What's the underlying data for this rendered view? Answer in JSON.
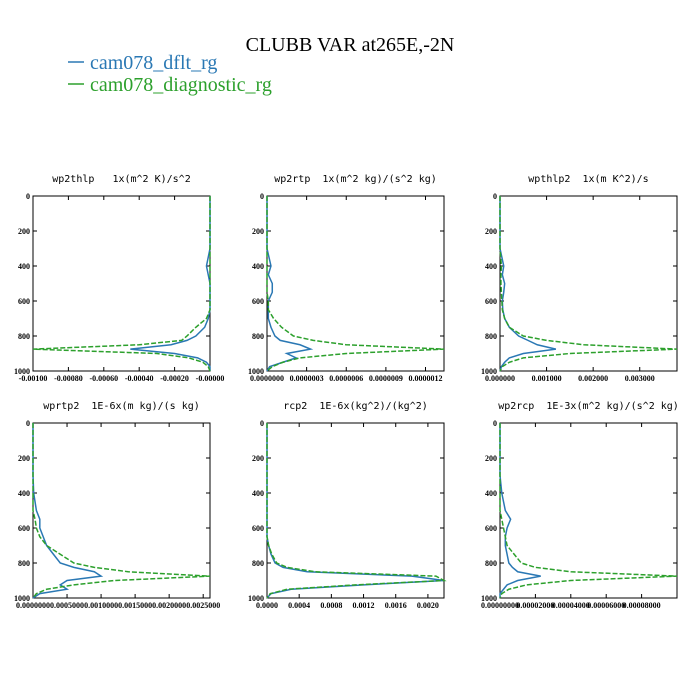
{
  "title": "CLUBB VAR at265E,-2N",
  "legend": [
    {
      "name": "cam078_dflt_rg",
      "color": "#2a78b4"
    },
    {
      "name": "cam078_diagnostic_rg",
      "color": "#2ca02c"
    }
  ],
  "chart_data": [
    {
      "type": "line",
      "title": "wp2thlp   1x(m^2 K)/s^2",
      "y": [
        0,
        100,
        200,
        300,
        400,
        450,
        500,
        550,
        600,
        650,
        700,
        750,
        800,
        825,
        850,
        875,
        900,
        925,
        950,
        975,
        1000
      ],
      "ylim": [
        0,
        1000
      ],
      "yreverse": true,
      "yticks": [
        0,
        200,
        400,
        600,
        800,
        1000
      ],
      "xlim": [
        -0.001,
        0
      ],
      "xticks": [
        {
          "value": -0.001,
          "label": "-0.00100"
        },
        {
          "value": -0.0008,
          "label": "-0.00080"
        },
        {
          "value": -0.0006,
          "label": "-0.00060"
        },
        {
          "value": -0.0004,
          "label": "-0.00040"
        },
        {
          "value": -0.0002,
          "label": "-0.00020"
        },
        {
          "value": 0,
          "label": "-0.00000"
        }
      ],
      "series": [
        {
          "color": "#2a78b4",
          "values": [
            0,
            0,
            0,
            0,
            -2e-05,
            -1e-05,
            0,
            0,
            0,
            0,
            -1e-05,
            -3e-05,
            -8e-05,
            -0.00013,
            -0.00022,
            -0.00045,
            -0.0002,
            -7e-05,
            -2e-05,
            0,
            0
          ]
        },
        {
          "color": "#2ca02c",
          "values": [
            0,
            0,
            0,
            0,
            0,
            0,
            0,
            0,
            0,
            0,
            -2e-05,
            -8e-05,
            -0.00013,
            -0.00016,
            -0.0004,
            -0.001,
            -0.0003,
            -0.00012,
            -4e-05,
            -1e-05,
            0
          ]
        }
      ]
    },
    {
      "type": "line",
      "title": "wp2rtp  1x(m^2 kg)/(s^2 kg)",
      "y": [
        0,
        100,
        200,
        300,
        400,
        450,
        500,
        550,
        600,
        650,
        700,
        750,
        800,
        825,
        850,
        875,
        900,
        925,
        950,
        975,
        1000
      ],
      "ylim": [
        0,
        1000
      ],
      "yreverse": true,
      "yticks": [
        0,
        200,
        400,
        600,
        800,
        1000
      ],
      "xlim": [
        0,
        1.34e-06
      ],
      "xticks": [
        {
          "value": 0,
          "label": "0.0000000"
        },
        {
          "value": 3e-07,
          "label": "0.0000003"
        },
        {
          "value": 6e-07,
          "label": "0.0000006"
        },
        {
          "value": 9e-07,
          "label": "0.0000009"
        },
        {
          "value": 1.2e-06,
          "label": "0.0000012"
        }
      ],
      "series": [
        {
          "color": "#2a78b4",
          "values": [
            0,
            0,
            0,
            0,
            3e-08,
            1e-08,
            4e-08,
            4e-08,
            1e-08,
            1e-08,
            1e-08,
            3e-08,
            6e-08,
            1e-07,
            2.5e-07,
            3.3e-07,
            1.5e-07,
            2.2e-07,
            1.2e-07,
            2e-08,
            0
          ]
        },
        {
          "color": "#2ca02c",
          "values": [
            0,
            0,
            0,
            0,
            0,
            0,
            0,
            0,
            1e-08,
            1e-08,
            5e-08,
            1.1e-07,
            2e-07,
            3.5e-07,
            6e-07,
            1.34e-06,
            6e-07,
            2.5e-07,
            1.2e-07,
            4e-08,
            0
          ]
        }
      ]
    },
    {
      "type": "line",
      "title": "wpthlp2  1x(m K^2)/s",
      "y": [
        0,
        100,
        200,
        300,
        400,
        450,
        500,
        550,
        600,
        650,
        700,
        750,
        800,
        825,
        850,
        875,
        900,
        925,
        950,
        975,
        1000
      ],
      "ylim": [
        0,
        1000
      ],
      "yreverse": true,
      "yticks": [
        0,
        200,
        400,
        600,
        800,
        1000
      ],
      "xlim": [
        0,
        0.0038
      ],
      "xticks": [
        {
          "value": 0,
          "label": "0.000000"
        },
        {
          "value": 0.001,
          "label": "0.001000"
        },
        {
          "value": 0.002,
          "label": "0.002000"
        },
        {
          "value": 0.003,
          "label": "0.003000"
        }
      ],
      "series": [
        {
          "color": "#2a78b4",
          "values": [
            0,
            0,
            0,
            0,
            8e-05,
            5e-05,
            0.0001,
            8e-05,
            5e-05,
            6e-05,
            0.0001,
            0.0002,
            0.0004,
            0.0006,
            0.0008,
            0.0012,
            0.0005,
            0.0002,
            0.0001,
            3e-05,
            0
          ]
        },
        {
          "color": "#2ca02c",
          "values": [
            0,
            0,
            0,
            0,
            3e-05,
            2e-05,
            2e-05,
            3e-05,
            4e-05,
            5e-05,
            0.0001,
            0.0002,
            0.0005,
            0.001,
            0.0018,
            0.0038,
            0.0015,
            0.0005,
            0.0002,
            5e-05,
            0
          ]
        }
      ]
    },
    {
      "type": "line",
      "title": "wprtp2  1E-6x(m kg)/(s kg)",
      "y": [
        0,
        100,
        200,
        300,
        400,
        450,
        500,
        550,
        600,
        650,
        700,
        750,
        800,
        825,
        850,
        875,
        900,
        925,
        950,
        975,
        1000
      ],
      "ylim": [
        0,
        1000
      ],
      "yreverse": true,
      "yticks": [
        0,
        200,
        400,
        600,
        800,
        1000
      ],
      "xlim": [
        0,
        0.0026
      ],
      "xticks": [
        {
          "value": 0,
          "label": "0.0000000"
        },
        {
          "value": 0.0005,
          "label": "0.0005000"
        },
        {
          "value": 0.001,
          "label": "0.0010000"
        },
        {
          "value": 0.0015,
          "label": "0.0015000"
        },
        {
          "value": 0.002,
          "label": "0.0020000"
        },
        {
          "value": 0.0025,
          "label": "0.0025000"
        }
      ],
      "series": [
        {
          "color": "#2a78b4",
          "values": [
            0,
            0,
            0,
            0,
            1e-05,
            3e-05,
            5e-05,
            0.0001,
            0.0001,
            0.00015,
            0.0002,
            0.0003,
            0.0004,
            0.0006,
            0.0009,
            0.001,
            0.0005,
            0.0004,
            0.0005,
            0.0001,
            0
          ]
        },
        {
          "color": "#2ca02c",
          "values": [
            0,
            0,
            0,
            0,
            0,
            0,
            0,
            3e-05,
            5e-05,
            0.0001,
            0.0002,
            0.0004,
            0.0006,
            0.0009,
            0.0014,
            0.0026,
            0.0012,
            0.0006,
            0.0002,
            5e-05,
            0
          ]
        }
      ]
    },
    {
      "type": "line",
      "title": "rcp2  1E-6x(kg^2)/(kg^2)",
      "y": [
        0,
        100,
        200,
        300,
        400,
        450,
        500,
        550,
        600,
        650,
        700,
        750,
        800,
        825,
        850,
        875,
        900,
        925,
        950,
        975,
        1000
      ],
      "ylim": [
        0,
        1000
      ],
      "yreverse": true,
      "yticks": [
        0,
        200,
        400,
        600,
        800,
        1000
      ],
      "xlim": [
        0,
        0.0022
      ],
      "xticks": [
        {
          "value": 0,
          "label": "0.0000"
        },
        {
          "value": 0.0004,
          "label": "0.0004"
        },
        {
          "value": 0.0008,
          "label": "0.0008"
        },
        {
          "value": 0.0012,
          "label": "0.0012"
        },
        {
          "value": 0.0016,
          "label": "0.0016"
        },
        {
          "value": 0.002,
          "label": "0.0020"
        }
      ],
      "series": [
        {
          "color": "#2a78b4",
          "values": [
            0,
            0,
            0,
            0,
            0,
            0,
            0,
            0,
            0,
            0,
            2e-05,
            5e-05,
            0.0001,
            0.0002,
            0.0005,
            0.0018,
            0.0022,
            0.0012,
            0.0003,
            5e-05,
            0
          ]
        },
        {
          "color": "#2ca02c",
          "values": [
            0,
            0,
            0,
            0,
            0,
            0,
            0,
            0,
            0,
            0,
            2e-05,
            6e-05,
            0.00012,
            0.00025,
            0.0006,
            0.0021,
            0.0022,
            0.0011,
            0.00025,
            4e-05,
            0
          ]
        }
      ]
    },
    {
      "type": "line",
      "title": "wp2rcp  1E-3x(m^2 kg)/(s^2 kg)",
      "y": [
        0,
        100,
        200,
        300,
        400,
        450,
        500,
        550,
        600,
        650,
        700,
        750,
        800,
        825,
        850,
        875,
        900,
        925,
        950,
        975,
        1000
      ],
      "ylim": [
        0,
        1000
      ],
      "yreverse": true,
      "yticks": [
        0,
        200,
        400,
        600,
        800,
        1000
      ],
      "xlim": [
        0,
        0.0001
      ],
      "xticks": [
        {
          "value": 0,
          "label": "0.00000000"
        },
        {
          "value": 2e-05,
          "label": "0.00002000"
        },
        {
          "value": 4e-05,
          "label": "0.00004000"
        },
        {
          "value": 6e-05,
          "label": "0.00006000"
        },
        {
          "value": 8e-05,
          "label": "0.00008000"
        }
      ],
      "series": [
        {
          "color": "#2a78b4",
          "values": [
            0,
            0,
            0,
            0,
            1e-06,
            2e-06,
            3e-06,
            6e-06,
            4e-06,
            3e-06,
            3e-06,
            4e-06,
            5e-06,
            7e-06,
            1e-05,
            2.3e-05,
            1e-05,
            4e-06,
            2e-06,
            0,
            0
          ]
        },
        {
          "color": "#2ca02c",
          "values": [
            0,
            0,
            0,
            0,
            0,
            0,
            0,
            1e-06,
            2e-06,
            3e-06,
            4e-06,
            8e-06,
            1.2e-05,
            2e-05,
            4e-05,
            0.0001,
            4e-05,
            1.5e-05,
            5e-06,
            1e-06,
            0
          ]
        }
      ]
    }
  ]
}
